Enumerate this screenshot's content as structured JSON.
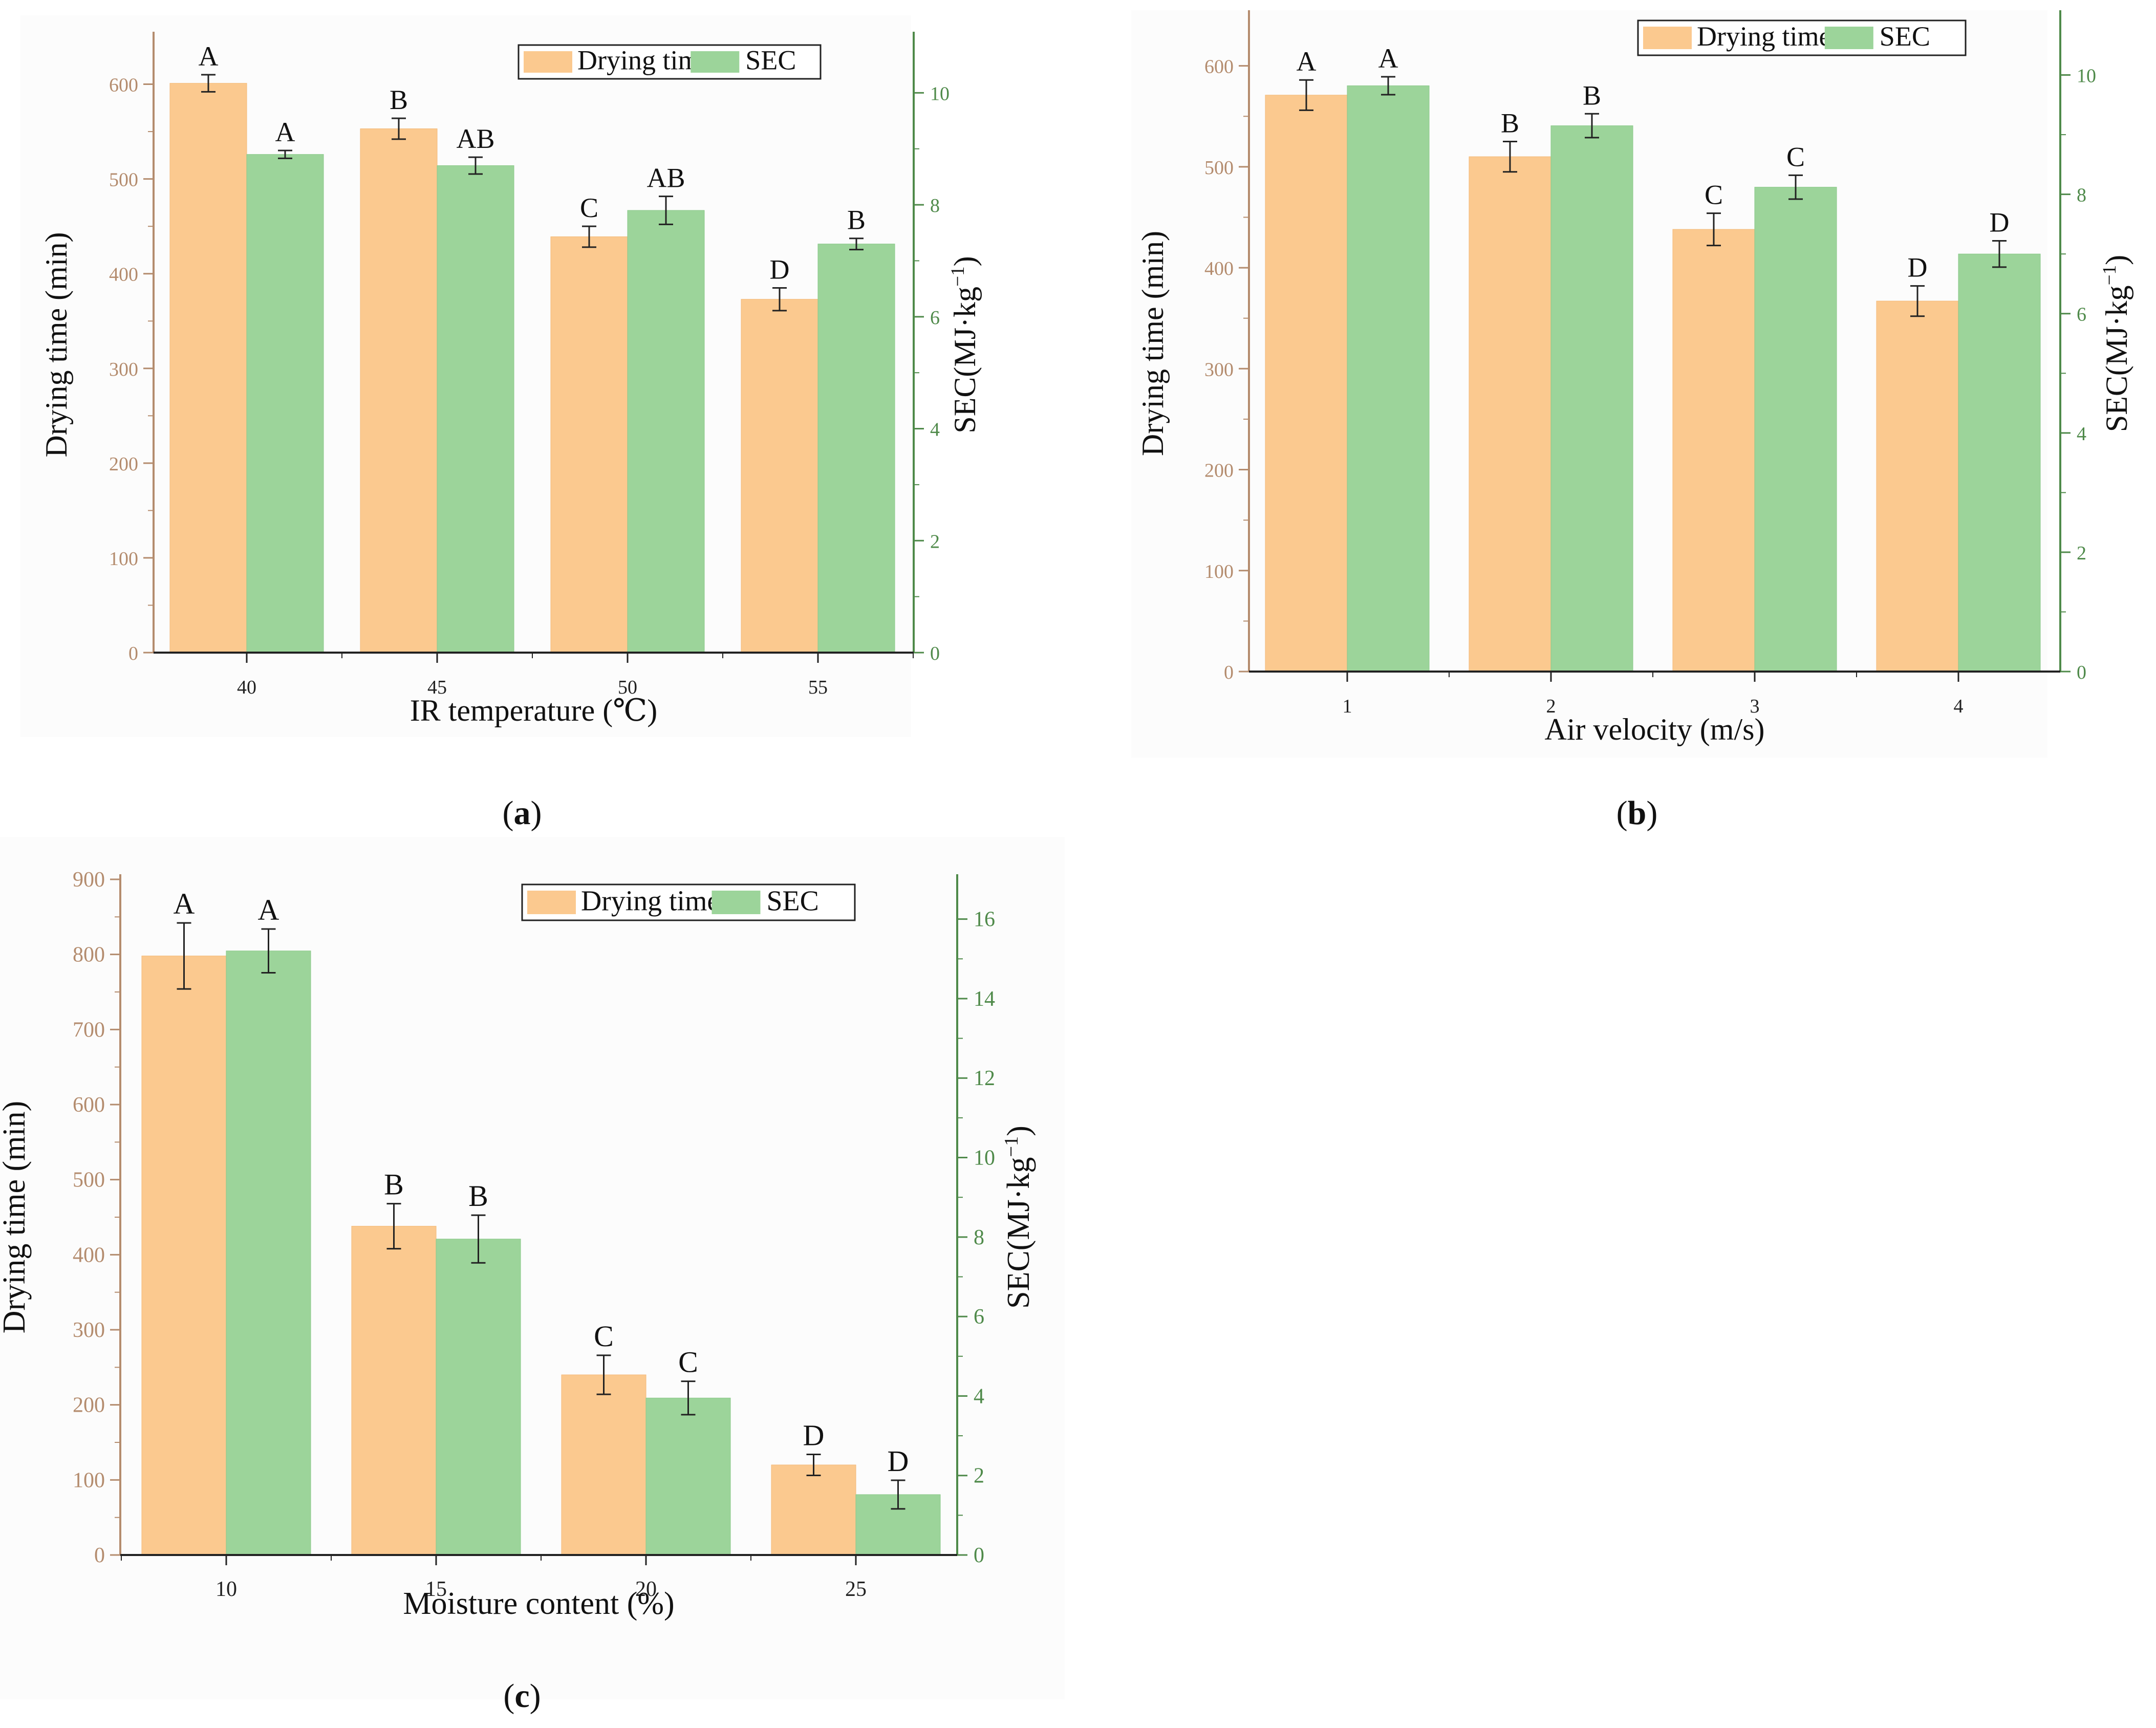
{
  "colors": {
    "drying": "#fbc98f",
    "sec": "#9cd49a",
    "left_axis": "#b48c6e",
    "right_axis": "#4f8a4a",
    "panel_bg": "#fcfcfc",
    "bar_edge": "#f3b978",
    "sec_edge": "#8ac889"
  },
  "chart_data": [
    {
      "type": "bar",
      "panel": "(a)",
      "panel_letter": "a",
      "categories": [
        "40",
        "45",
        "50",
        "55"
      ],
      "xlabel": "IR temperature (℃)",
      "ylabel": "Drying time (min)",
      "y2label": "SEC(MJ·kg",
      "y2label_sup": "−1",
      "y2label_end": ")",
      "ylim": [
        0,
        650
      ],
      "yticks": [
        0,
        100,
        200,
        300,
        400,
        500,
        600
      ],
      "y2lim": [
        0,
        11
      ],
      "y2ticks": [
        0,
        2,
        4,
        6,
        8,
        10
      ],
      "legend": [
        "Drying time",
        "SEC"
      ],
      "legend_position": "top-right",
      "series": [
        {
          "name": "Drying time",
          "axis": "left",
          "values": [
            601,
            553,
            439,
            373
          ],
          "errors": [
            9,
            11,
            11,
            12
          ],
          "letters": [
            "A",
            "B",
            "C",
            "D"
          ]
        },
        {
          "name": "SEC",
          "axis": "right",
          "values": [
            8.9,
            8.7,
            7.9,
            7.3
          ],
          "errors": [
            0.07,
            0.15,
            0.25,
            0.1
          ],
          "letters": [
            "A",
            "AB",
            "AB",
            "B"
          ]
        }
      ]
    },
    {
      "type": "bar",
      "panel": "(b)",
      "panel_letter": "b",
      "categories": [
        "1",
        "2",
        "3",
        "4"
      ],
      "xlabel": "Air velocity (m/s)",
      "ylabel": "Drying time (min)",
      "y2label": "SEC(MJ·kg",
      "y2label_sup": "−1",
      "y2label_end": ")",
      "ylim": [
        0,
        650
      ],
      "yticks": [
        0,
        100,
        200,
        300,
        400,
        500,
        600
      ],
      "y2lim": [
        0,
        11
      ],
      "y2ticks": [
        0,
        2,
        4,
        6,
        8,
        10
      ],
      "legend": [
        "Drying time",
        "SEC"
      ],
      "legend_position": "top-right",
      "series": [
        {
          "name": "Drying time",
          "axis": "left",
          "values": [
            571,
            510,
            438,
            367
          ],
          "errors": [
            15,
            15,
            16,
            15
          ],
          "letters": [
            "A",
            "B",
            "C",
            "D"
          ]
        },
        {
          "name": "SEC",
          "axis": "right",
          "values": [
            9.82,
            9.15,
            8.12,
            7.0
          ],
          "errors": [
            0.15,
            0.2,
            0.2,
            0.22
          ],
          "letters": [
            "A",
            "B",
            "C",
            "D"
          ]
        }
      ]
    },
    {
      "type": "bar",
      "panel": "(c)",
      "panel_letter": "c",
      "categories": [
        "10",
        "15",
        "20",
        "25"
      ],
      "xlabel": "Moisture content (%)",
      "ylabel": "Drying time (min)",
      "y2label": "SEC(MJ·kg",
      "y2label_sup": "−1",
      "y2label_end": ")",
      "ylim": [
        0,
        900
      ],
      "yticks": [
        0,
        100,
        200,
        300,
        400,
        500,
        600,
        700,
        800,
        900
      ],
      "y2lim": [
        0,
        17
      ],
      "y2ticks": [
        0,
        2,
        4,
        6,
        8,
        10,
        12,
        14,
        16
      ],
      "legend": [
        "Drying time",
        "SEC"
      ],
      "legend_position": "top-right",
      "series": [
        {
          "name": "Drying time",
          "axis": "left",
          "values": [
            798,
            438,
            240,
            120
          ],
          "errors": [
            44,
            30,
            26,
            14
          ],
          "letters": [
            "A",
            "B",
            "C",
            "D"
          ]
        },
        {
          "name": "SEC",
          "axis": "right",
          "values": [
            15.2,
            7.95,
            3.95,
            1.52
          ],
          "errors": [
            0.55,
            0.6,
            0.42,
            0.36
          ],
          "letters": [
            "A",
            "B",
            "C",
            "D"
          ]
        }
      ]
    }
  ]
}
